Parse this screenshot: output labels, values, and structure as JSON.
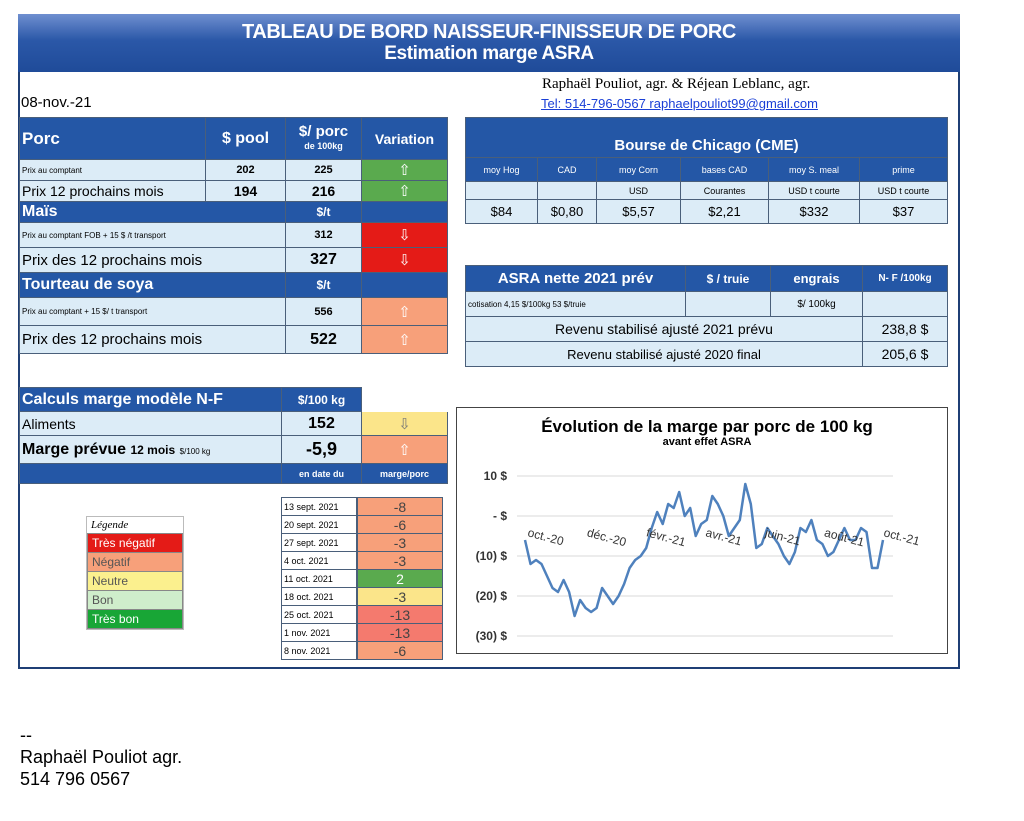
{
  "header": {
    "title_line1": "TABLEAU DE BORD NAISSEUR-FINISSEUR DE PORC",
    "title_line2": "Estimation marge ASRA",
    "date": "08-nov.-21",
    "authors": "Raphaël Pouliot, agr.   &   Réjean Leblanc, agr.",
    "contact": "Tel:   514-796-0567   raphaelpouliot99@gmail.com"
  },
  "porc": {
    "header": {
      "label": "Porc",
      "pool": "$ pool",
      "per100_a": "$/ porc",
      "per100_b": "de 100kg",
      "variation": "Variation"
    },
    "rows": [
      {
        "label": "Prix au comptant",
        "pool": "202",
        "per100": "225",
        "arrow": "⇧"
      },
      {
        "label": "Prix 12 prochains mois",
        "pool": "194",
        "per100": "216",
        "arrow": "⇧"
      }
    ]
  },
  "mais": {
    "header": {
      "label": "Maïs",
      "unit": "$/t"
    },
    "rows": [
      {
        "label": "Prix au comptant  FOB + 15 $ /t transport",
        "value": "312",
        "arrow": "⇩"
      },
      {
        "label": "Prix des 12 prochains mois",
        "value": "327",
        "arrow": "⇩"
      }
    ]
  },
  "soya": {
    "header": {
      "label": "Tourteau de soya",
      "unit": "$/t"
    },
    "rows": [
      {
        "label": "Prix au comptant  + 15 $/ t  transport",
        "value": "556",
        "arrow": "⇧"
      },
      {
        "label": "Prix des 12 prochains mois",
        "value": "522",
        "arrow": "⇧"
      }
    ]
  },
  "marge": {
    "header": {
      "label": "Calculs marge  modèle N-F",
      "unit": "$/100 kg"
    },
    "aliments": {
      "label": "Aliments",
      "value": "152",
      "arrow": "⇩"
    },
    "prevue": {
      "label": "Marge prévue",
      "label_sub": "12 mois",
      "label_unit": "$/100 kg",
      "value": "-5,9",
      "arrow": "⇧"
    },
    "history_header": {
      "date": "en date du",
      "margin": "marge/porc"
    },
    "history": [
      {
        "date": "13 sept. 2021",
        "value": "-8",
        "color": "#f7a07a"
      },
      {
        "date": "20 sept. 2021",
        "value": "-6",
        "color": "#f7a07a"
      },
      {
        "date": "27 sept. 2021",
        "value": "-3",
        "color": "#f7a07a"
      },
      {
        "date": "4 oct. 2021",
        "value": "-3",
        "color": "#f7a07a"
      },
      {
        "date": "11 oct. 2021",
        "value": "2",
        "color": "#5aaa4e"
      },
      {
        "date": "18 oct. 2021",
        "value": "-3",
        "color": "#fbe58a"
      },
      {
        "date": "25 oct. 2021",
        "value": "-13",
        "color": "#f47a6e"
      },
      {
        "date": "1 nov. 2021",
        "value": "-13",
        "color": "#f47a6e"
      },
      {
        "date": "8 nov. 2021",
        "value": "-6",
        "color": "#f7a07a"
      }
    ]
  },
  "legend": {
    "title": "Légende",
    "items": [
      {
        "label": "Très négatif",
        "color": "#e41b17"
      },
      {
        "label": "Négatif",
        "color": "#f7a07a"
      },
      {
        "label": "Neutre",
        "color": "#fbf08e"
      },
      {
        "label": "Bon",
        "color": "#cfeecb"
      },
      {
        "label": "Très bon",
        "color": "#18a636"
      }
    ]
  },
  "chicago": {
    "title": "Bourse de Chicago (CME)",
    "columns": [
      "moy Hog",
      "CAD",
      "moy Corn",
      "bases CAD",
      "moy S. meal",
      "prime"
    ],
    "units": [
      "",
      "",
      "USD",
      "Courantes",
      "USD t courte",
      "USD t courte"
    ],
    "values": [
      "$84",
      "$0,80",
      "$5,57",
      "$2,21",
      "$332",
      "$37"
    ]
  },
  "asra": {
    "title": "ASRA nette 2021 prév",
    "col_truie": "$ / truie",
    "col_engrais": "engrais",
    "col_nf": "N- F /100kg",
    "cotisation": "cotisation 4,15 $/100kg  53 $/truie",
    "unit_100kg": "$/ 100kg",
    "rows": [
      {
        "label": "Revenu stabilisé ajusté 2021 prévu",
        "value": "238,8 $"
      },
      {
        "label": "Revenu stabilisé ajusté 2020 final",
        "value": "205,6 $"
      }
    ]
  },
  "chart_data": {
    "type": "line",
    "title": "Évolution de la marge par porc de 100 kg",
    "subtitle": "avant effet ASRA",
    "y_tick_labels": [
      "10 $",
      "- $",
      "(10) $",
      "(20) $",
      "(30) $"
    ],
    "y_ticks": [
      10,
      0,
      -10,
      -20,
      -30
    ],
    "ylim": [
      -30,
      10
    ],
    "x_tick_labels": [
      "oct.-20",
      "déc.-20",
      "févr.-21",
      "avr.-21",
      "juin-21",
      "août-21",
      "oct.-21"
    ],
    "series": [
      {
        "color": "#4f81bd",
        "values": [
          -6,
          -12,
          -11,
          -12,
          -15,
          -18,
          -19,
          -16,
          -19,
          -25,
          -21,
          -23,
          -24,
          -23,
          -18,
          -20,
          -22,
          -20,
          -17,
          -13,
          -11,
          -10,
          -8,
          -3,
          1,
          -2,
          3,
          2,
          6,
          0,
          2,
          -5,
          -2,
          -1,
          5,
          3,
          0,
          -5,
          -3,
          -1,
          8,
          3,
          -8,
          -7,
          -3,
          -5,
          -7,
          -10,
          -12,
          -9,
          -3,
          -4,
          -1,
          -6,
          -7,
          -10,
          -9,
          -6,
          -3,
          -6,
          -6,
          -3,
          -4,
          -13,
          -13,
          -6
        ]
      }
    ]
  },
  "footer": {
    "sep": "--",
    "name": "Raphaël Pouliot  agr.",
    "phone": "514 796 0567"
  }
}
